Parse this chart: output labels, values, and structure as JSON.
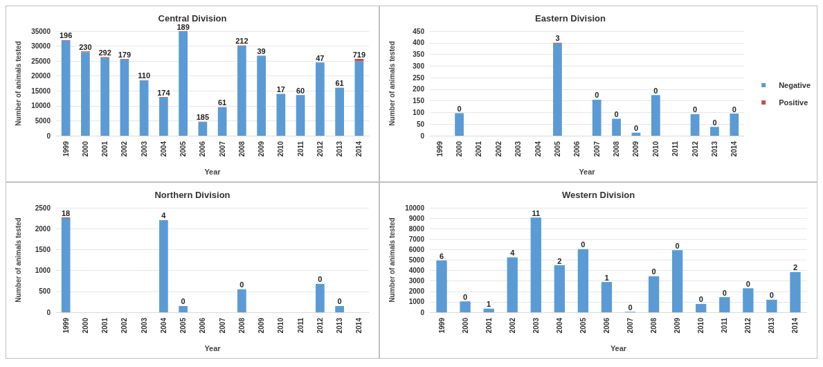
{
  "chart_data": [
    {
      "type": "bar",
      "title": "Central Division",
      "xlabel": "Year",
      "ylabel": "Number of animals tested",
      "stacked": true,
      "grid": "y",
      "categories": [
        "1999",
        "2000",
        "2001",
        "2002",
        "2003",
        "2004",
        "2005",
        "2006",
        "2007",
        "2008",
        "2009",
        "2010",
        "2011",
        "2012",
        "2013",
        "2014"
      ],
      "ylim": [
        0,
        35000
      ],
      "yticks": [
        0,
        5000,
        10000,
        15000,
        20000,
        25000,
        30000,
        35000
      ],
      "series": [
        {
          "color": "#5b9bd5",
          "values": [
            31800,
            28000,
            26000,
            25500,
            18500,
            12800,
            34800,
            4500,
            9500,
            30000,
            26800,
            14000,
            13600,
            24500,
            16000,
            25000
          ]
        },
        {
          "color": "#c0504d",
          "values": [
            196,
            230,
            292,
            179,
            110,
            174,
            189,
            185,
            61,
            212,
            39,
            17,
            60,
            47,
            61,
            719
          ],
          "value_labels": [
            "196",
            "230",
            "292",
            "179",
            "110",
            "174",
            "189",
            "185",
            "61",
            "212",
            "39",
            "17",
            "60",
            "47",
            "61",
            "719"
          ]
        }
      ]
    },
    {
      "type": "bar",
      "title": "Eastern Division",
      "xlabel": "Year",
      "ylabel": "Number of animals tested",
      "stacked": true,
      "grid": "y",
      "legend": "right",
      "categories": [
        "1999",
        "2000",
        "2001",
        "2002",
        "2003",
        "2004",
        "2005",
        "2006",
        "2007",
        "2008",
        "2009",
        "2010",
        "2011",
        "2012",
        "2013",
        "2014"
      ],
      "ylim": [
        0,
        450
      ],
      "yticks": [
        0,
        50,
        100,
        150,
        200,
        250,
        300,
        350,
        400,
        450
      ],
      "series": [
        {
          "name": "Negative",
          "color": "#5b9bd5",
          "values": [
            null,
            97,
            null,
            null,
            null,
            null,
            397,
            null,
            155,
            73,
            13,
            175,
            null,
            93,
            38,
            95
          ]
        },
        {
          "name": "Positive",
          "color": "#c0504d",
          "values": [
            null,
            0,
            null,
            null,
            null,
            null,
            3,
            null,
            0,
            0,
            0,
            0,
            null,
            0,
            0,
            0
          ],
          "value_labels": [
            null,
            "0",
            null,
            null,
            null,
            null,
            "3",
            null,
            "0",
            "0",
            "0",
            "0",
            null,
            "0",
            "0",
            "0"
          ]
        }
      ]
    },
    {
      "type": "bar",
      "title": "Northern Division",
      "xlabel": "Year",
      "ylabel": "Number of animals tested",
      "stacked": true,
      "grid": "y",
      "categories": [
        "1999",
        "2000",
        "2001",
        "2002",
        "2003",
        "2004",
        "2005",
        "2006",
        "2007",
        "2008",
        "2009",
        "2010",
        "2011",
        "2012",
        "2013",
        "2014"
      ],
      "ylim": [
        0,
        2500
      ],
      "yticks": [
        0,
        500,
        1000,
        1500,
        2000,
        2500
      ],
      "series": [
        {
          "color": "#5b9bd5",
          "values": [
            2250,
            null,
            null,
            null,
            null,
            2200,
            150,
            null,
            null,
            550,
            null,
            null,
            null,
            680,
            150,
            null
          ]
        },
        {
          "color": "#c0504d",
          "values": [
            18,
            null,
            null,
            null,
            null,
            4,
            0,
            null,
            null,
            0,
            null,
            null,
            null,
            0,
            0,
            null
          ],
          "value_labels": [
            "18",
            null,
            null,
            null,
            null,
            "4",
            "0",
            null,
            null,
            "0",
            null,
            null,
            null,
            "0",
            "0",
            null
          ]
        }
      ]
    },
    {
      "type": "bar",
      "title": "Western Division",
      "xlabel": "Year",
      "ylabel": "Number of animals tested",
      "stacked": true,
      "grid": "y",
      "categories": [
        "1999",
        "2000",
        "2001",
        "2002",
        "2003",
        "2004",
        "2005",
        "2006",
        "2007",
        "2008",
        "2009",
        "2010",
        "2011",
        "2012",
        "2013",
        "2014"
      ],
      "ylim": [
        0,
        10000
      ],
      "yticks": [
        0,
        1000,
        2000,
        3000,
        4000,
        5000,
        6000,
        7000,
        8000,
        9000,
        10000
      ],
      "series": [
        {
          "color": "#5b9bd5",
          "values": [
            4950,
            1050,
            350,
            5250,
            9050,
            4500,
            6050,
            2900,
            50,
            3450,
            5950,
            800,
            1450,
            2300,
            1200,
            3850
          ]
        },
        {
          "color": "#c0504d",
          "values": [
            6,
            0,
            1,
            4,
            11,
            2,
            0,
            1,
            0,
            0,
            0,
            0,
            0,
            0,
            0,
            2
          ],
          "value_labels": [
            "6",
            "0",
            "1",
            "4",
            "11",
            "2",
            "0",
            "1",
            "0",
            "0",
            "0",
            "0",
            "0",
            "0",
            "0",
            "2"
          ]
        }
      ]
    }
  ]
}
